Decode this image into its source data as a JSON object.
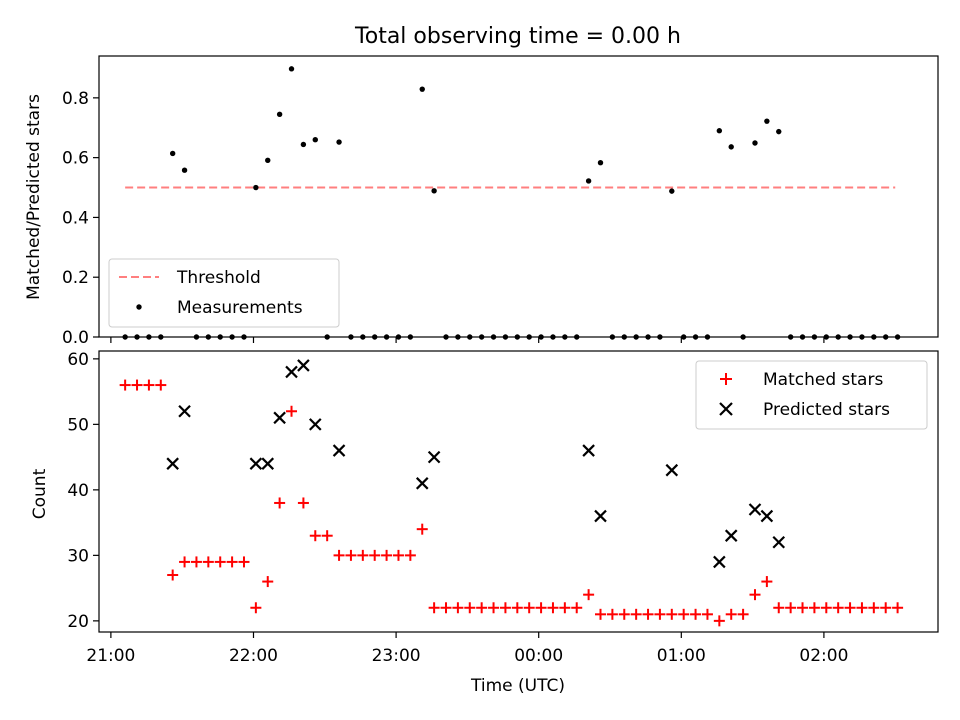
{
  "chart_data": [
    {
      "type": "scatter",
      "title": "Total observing time = 0.00 h",
      "xlabel": "",
      "ylabel": "Matched/Predicted stars",
      "xlim": [
        "20:55",
        "02:48"
      ],
      "ylim": [
        0,
        0.94
      ],
      "yticks": [
        0.0,
        0.2,
        0.4,
        0.6,
        0.8
      ],
      "ytick_labels": [
        "0.0",
        "0.2",
        "0.4",
        "0.6",
        "0.8"
      ],
      "xticks": [
        "21:00",
        "22:00",
        "23:00",
        "00:00",
        "01:00",
        "02:00"
      ],
      "threshold": {
        "name": "Threshold",
        "value": 0.5,
        "x_range": [
          "21:06",
          "02:30"
        ],
        "color": "#ff7f7f",
        "style": "dashed"
      },
      "series": [
        {
          "name": "Measurements",
          "color": "#000000",
          "marker": "dot",
          "points": [
            [
              "21:06",
              0.0
            ],
            [
              "21:11",
              0.0
            ],
            [
              "21:16",
              0.0
            ],
            [
              "21:21",
              0.0
            ],
            [
              "21:26",
              0.614
            ],
            [
              "21:31",
              0.558
            ],
            [
              "21:36",
              0.0
            ],
            [
              "21:41",
              0.0
            ],
            [
              "21:46",
              0.0
            ],
            [
              "21:51",
              0.0
            ],
            [
              "21:56",
              0.0
            ],
            [
              "22:01",
              0.5
            ],
            [
              "22:06",
              0.591
            ],
            [
              "22:11",
              0.745
            ],
            [
              "22:16",
              0.897
            ],
            [
              "22:21",
              0.644
            ],
            [
              "22:26",
              0.66
            ],
            [
              "22:31",
              0.0
            ],
            [
              "22:36",
              0.652
            ],
            [
              "22:41",
              0.0
            ],
            [
              "22:46",
              0.0
            ],
            [
              "22:51",
              0.0
            ],
            [
              "22:56",
              0.0
            ],
            [
              "23:01",
              0.0
            ],
            [
              "23:06",
              0.0
            ],
            [
              "23:11",
              0.829
            ],
            [
              "23:16",
              0.489
            ],
            [
              "23:21",
              0.0
            ],
            [
              "23:26",
              0.0
            ],
            [
              "23:31",
              0.0
            ],
            [
              "23:36",
              0.0
            ],
            [
              "23:41",
              0.0
            ],
            [
              "23:46",
              0.0
            ],
            [
              "23:51",
              0.0
            ],
            [
              "23:56",
              0.0
            ],
            [
              "00:01",
              0.0
            ],
            [
              "00:06",
              0.0
            ],
            [
              "00:11",
              0.0
            ],
            [
              "00:16",
              0.0
            ],
            [
              "00:21",
              0.522
            ],
            [
              "00:26",
              0.583
            ],
            [
              "00:31",
              0.0
            ],
            [
              "00:36",
              0.0
            ],
            [
              "00:41",
              0.0
            ],
            [
              "00:46",
              0.0
            ],
            [
              "00:51",
              0.0
            ],
            [
              "00:56",
              0.488
            ],
            [
              "01:01",
              0.0
            ],
            [
              "01:06",
              0.0
            ],
            [
              "01:11",
              0.0
            ],
            [
              "01:16",
              0.69
            ],
            [
              "01:21",
              0.636
            ],
            [
              "01:26",
              0.0
            ],
            [
              "01:31",
              0.649
            ],
            [
              "01:36",
              0.722
            ],
            [
              "01:41",
              0.687
            ],
            [
              "01:46",
              0.0
            ],
            [
              "01:51",
              0.0
            ],
            [
              "01:56",
              0.0
            ],
            [
              "02:01",
              0.0
            ],
            [
              "02:06",
              0.0
            ],
            [
              "02:11",
              0.0
            ],
            [
              "02:16",
              0.0
            ],
            [
              "02:21",
              0.0
            ],
            [
              "02:26",
              0.0
            ],
            [
              "02:31",
              0.0
            ]
          ]
        }
      ],
      "legend": {
        "position": "lower-left",
        "entries": [
          "Threshold",
          "Measurements"
        ]
      },
      "grid": false
    },
    {
      "type": "scatter",
      "title": "",
      "xlabel": "Time (UTC)",
      "ylabel": "Count",
      "xlim": [
        "20:55",
        "02:48"
      ],
      "ylim": [
        18.3,
        61.2
      ],
      "yticks": [
        20,
        30,
        40,
        50,
        60
      ],
      "ytick_labels": [
        "20",
        "30",
        "40",
        "50",
        "60"
      ],
      "xticks": [
        "21:00",
        "22:00",
        "23:00",
        "00:00",
        "01:00",
        "02:00"
      ],
      "xtick_labels": [
        "21:00",
        "22:00",
        "23:00",
        "00:00",
        "01:00",
        "02:00"
      ],
      "series": [
        {
          "name": "Matched stars",
          "color": "#ff0000",
          "marker": "plus",
          "points": [
            [
              "21:06",
              56
            ],
            [
              "21:11",
              56
            ],
            [
              "21:16",
              56
            ],
            [
              "21:21",
              56
            ],
            [
              "21:26",
              27
            ],
            [
              "21:31",
              29
            ],
            [
              "21:36",
              29
            ],
            [
              "21:41",
              29
            ],
            [
              "21:46",
              29
            ],
            [
              "21:51",
              29
            ],
            [
              "21:56",
              29
            ],
            [
              "22:01",
              22
            ],
            [
              "22:06",
              26
            ],
            [
              "22:11",
              38
            ],
            [
              "22:16",
              52
            ],
            [
              "22:21",
              38
            ],
            [
              "22:26",
              33
            ],
            [
              "22:31",
              33
            ],
            [
              "22:36",
              30
            ],
            [
              "22:41",
              30
            ],
            [
              "22:46",
              30
            ],
            [
              "22:51",
              30
            ],
            [
              "22:56",
              30
            ],
            [
              "23:01",
              30
            ],
            [
              "23:06",
              30
            ],
            [
              "23:11",
              34
            ],
            [
              "23:16",
              22
            ],
            [
              "23:21",
              22
            ],
            [
              "23:26",
              22
            ],
            [
              "23:31",
              22
            ],
            [
              "23:36",
              22
            ],
            [
              "23:41",
              22
            ],
            [
              "23:46",
              22
            ],
            [
              "23:51",
              22
            ],
            [
              "23:56",
              22
            ],
            [
              "00:01",
              22
            ],
            [
              "00:06",
              22
            ],
            [
              "00:11",
              22
            ],
            [
              "00:16",
              22
            ],
            [
              "00:21",
              24
            ],
            [
              "00:26",
              21
            ],
            [
              "00:31",
              21
            ],
            [
              "00:36",
              21
            ],
            [
              "00:41",
              21
            ],
            [
              "00:46",
              21
            ],
            [
              "00:51",
              21
            ],
            [
              "00:56",
              21
            ],
            [
              "01:01",
              21
            ],
            [
              "01:06",
              21
            ],
            [
              "01:11",
              21
            ],
            [
              "01:16",
              20
            ],
            [
              "01:21",
              21
            ],
            [
              "01:26",
              21
            ],
            [
              "01:31",
              24
            ],
            [
              "01:36",
              26
            ],
            [
              "01:41",
              22
            ],
            [
              "01:46",
              22
            ],
            [
              "01:51",
              22
            ],
            [
              "01:56",
              22
            ],
            [
              "02:01",
              22
            ],
            [
              "02:06",
              22
            ],
            [
              "02:11",
              22
            ],
            [
              "02:16",
              22
            ],
            [
              "02:21",
              22
            ],
            [
              "02:26",
              22
            ],
            [
              "02:31",
              22
            ]
          ]
        },
        {
          "name": "Predicted stars",
          "color": "#000000",
          "marker": "x",
          "points": [
            [
              "21:26",
              44
            ],
            [
              "21:31",
              52
            ],
            [
              "22:01",
              44
            ],
            [
              "22:06",
              44
            ],
            [
              "22:11",
              51
            ],
            [
              "22:16",
              58
            ],
            [
              "22:21",
              59
            ],
            [
              "22:26",
              50
            ],
            [
              "22:36",
              46
            ],
            [
              "23:11",
              41
            ],
            [
              "23:16",
              45
            ],
            [
              "00:21",
              46
            ],
            [
              "00:26",
              36
            ],
            [
              "00:56",
              43
            ],
            [
              "01:16",
              29
            ],
            [
              "01:21",
              33
            ],
            [
              "01:31",
              37
            ],
            [
              "01:36",
              36
            ],
            [
              "01:41",
              32
            ]
          ]
        }
      ],
      "legend": {
        "position": "top-right",
        "entries": [
          "Matched stars",
          "Predicted stars"
        ]
      },
      "grid": false
    }
  ]
}
